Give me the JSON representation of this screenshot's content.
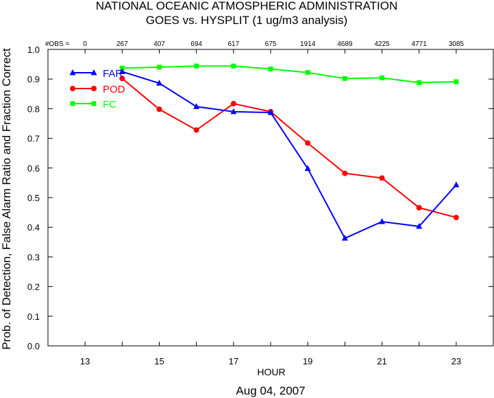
{
  "chart_data": {
    "type": "line",
    "title": "NATIONAL OCEANIC ATMOSPHERIC ADMINISTRATION",
    "subtitle": "GOES vs. HYSPLIT  (1 ug/m3 analysis)",
    "xlabel": "HOUR",
    "ylabel": "Prob. of Detection, False Alarm Ratio and Fraction Correct",
    "date_label": "Aug 04, 2007",
    "xlim": [
      12,
      24
    ],
    "ylim": [
      0,
      1
    ],
    "x_ticks": [
      13,
      15,
      17,
      19,
      21,
      23
    ],
    "y_ticks": [
      "0.0",
      "0.1",
      "0.2",
      "0.3",
      "0.4",
      "0.5",
      "0.6",
      "0.7",
      "0.8",
      "0.9",
      "1.0"
    ],
    "obs_label": "#OBS =",
    "obs": [
      {
        "x": 13,
        "n": "0"
      },
      {
        "x": 14,
        "n": "267"
      },
      {
        "x": 15,
        "n": "407"
      },
      {
        "x": 16,
        "n": "694"
      },
      {
        "x": 17,
        "n": "617"
      },
      {
        "x": 18,
        "n": "675"
      },
      {
        "x": 19,
        "n": "1914"
      },
      {
        "x": 20,
        "n": "4689"
      },
      {
        "x": 21,
        "n": "4225"
      },
      {
        "x": 22,
        "n": "4771"
      },
      {
        "x": 23,
        "n": "3085"
      }
    ],
    "series": [
      {
        "name": "FAR",
        "color": "#0000ff",
        "marker": "triangle",
        "x": [
          14,
          15,
          16,
          17,
          18,
          19,
          20,
          21,
          22,
          23
        ],
        "values": [
          0.925,
          0.886,
          0.807,
          0.79,
          0.787,
          0.598,
          0.363,
          0.419,
          0.403,
          0.543
        ]
      },
      {
        "name": "POD",
        "color": "#ff0000",
        "marker": "circle",
        "x": [
          14,
          15,
          16,
          17,
          18,
          19,
          20,
          21,
          22,
          23
        ],
        "values": [
          0.902,
          0.798,
          0.728,
          0.817,
          0.79,
          0.684,
          0.582,
          0.566,
          0.466,
          0.433
        ]
      },
      {
        "name": "FC",
        "color": "#00ff00",
        "marker": "square",
        "x": [
          14,
          15,
          16,
          17,
          18,
          19,
          20,
          21,
          22,
          23
        ],
        "values": [
          0.937,
          0.94,
          0.944,
          0.944,
          0.934,
          0.922,
          0.902,
          0.904,
          0.888,
          0.891
        ]
      }
    ],
    "legend_position": "top-left",
    "grid": false
  }
}
